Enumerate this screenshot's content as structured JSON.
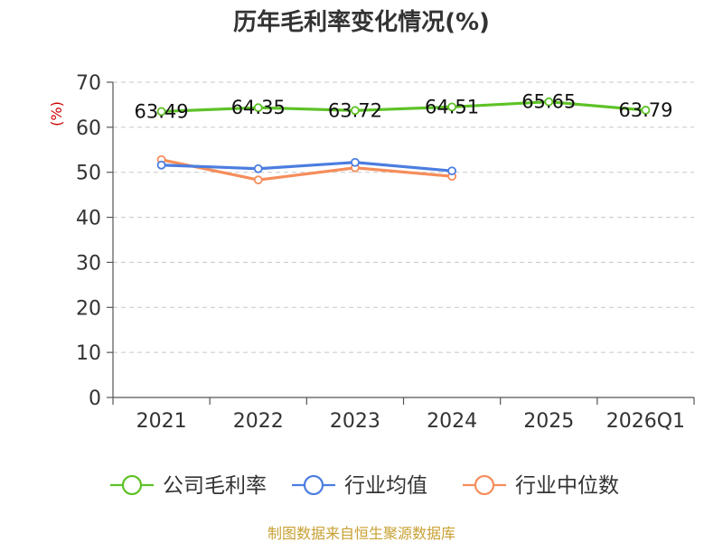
{
  "chart_data": {
    "type": "line",
    "title": "历年毛利率变化情况(%)",
    "unit": "(%)",
    "xlabel": "",
    "ylabel": "(%)",
    "ylim": [
      0,
      70
    ],
    "yticks": [
      0,
      10,
      20,
      30,
      40,
      50,
      60,
      70
    ],
    "grid": true,
    "legend_position": "bottom",
    "categories": [
      "2021",
      "2022",
      "2023",
      "2024",
      "2025",
      "2026Q1"
    ],
    "series": [
      {
        "name": "公司毛利率",
        "color": "#5ec227",
        "values": [
          63.49,
          64.35,
          63.72,
          64.51,
          65.65,
          63.79
        ],
        "labels": [
          "63.49",
          "64.35",
          "63.72",
          "64.51",
          "65.65",
          "63.79"
        ]
      },
      {
        "name": "行业均值",
        "color": "#4b7de0",
        "values": [
          51.6,
          50.8,
          52.2,
          50.3,
          null,
          null
        ]
      },
      {
        "name": "行业中位数",
        "color": "#f58d5b",
        "values": [
          52.8,
          48.3,
          51.0,
          49.1,
          null,
          null
        ]
      }
    ],
    "source": "制图数据来自恒生聚源数据库"
  }
}
